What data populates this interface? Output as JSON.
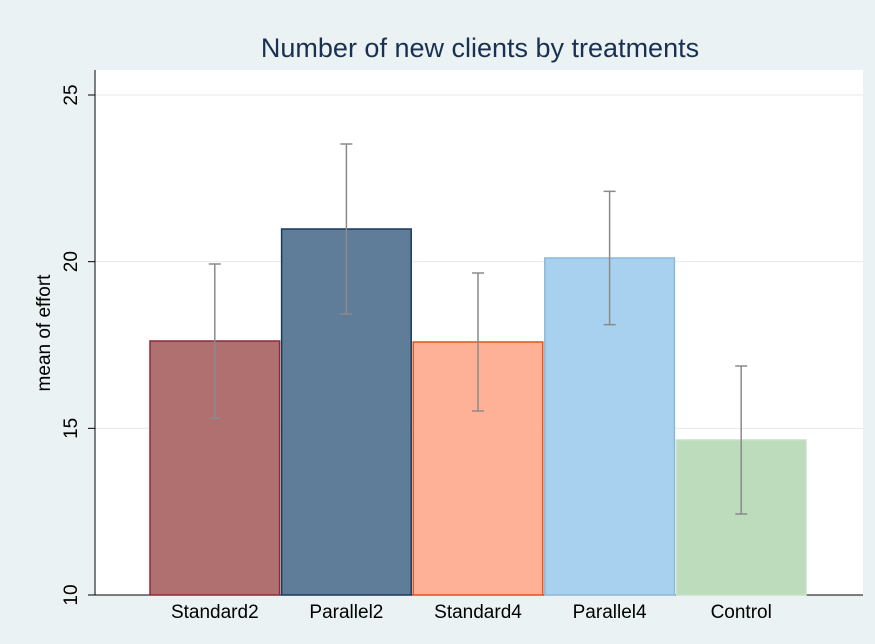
{
  "chart_data": {
    "type": "bar",
    "title": "Number of new clients by treatments",
    "y_label": "mean of effort",
    "categories": [
      "Standard2",
      "Parallel2",
      "Standard4",
      "Parallel4",
      "Control"
    ],
    "values": [
      17.62,
      20.98,
      17.59,
      20.11,
      14.65
    ],
    "errors": [
      2.31,
      2.55,
      2.07,
      2.0,
      2.22
    ],
    "colors": [
      "#b07070",
      "#5f7d99",
      "#ffb198",
      "#a8d0ef",
      "#bcdcbc"
    ],
    "edge_colors": [
      "#8b2a3a",
      "#1a3a5c",
      "#e2531e",
      "#8ab8dc",
      "#c8e0c8"
    ],
    "error_color": "#8a8a8a",
    "ylim": [
      10,
      25.6
    ],
    "yticks": [
      10,
      15,
      20,
      25
    ],
    "grid": true
  }
}
